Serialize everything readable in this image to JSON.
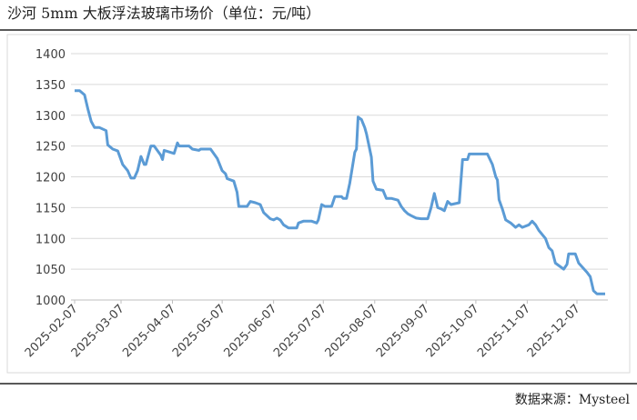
{
  "chart_data": {
    "type": "line",
    "title": "沙河 5mm 大板浮法玻璃市场价（单位：元/吨）",
    "source": "数据来源：Mysteel",
    "x": [
      "2025-02-07",
      "2025-02-10",
      "2025-02-13",
      "2025-02-15",
      "2025-02-17",
      "2025-02-19",
      "2025-02-22",
      "2025-02-26",
      "2025-02-27",
      "2025-03-02",
      "2025-03-05",
      "2025-03-08",
      "2025-03-11",
      "2025-03-13",
      "2025-03-15",
      "2025-03-17",
      "2025-03-19",
      "2025-03-21",
      "2025-03-22",
      "2025-03-25",
      "2025-03-27",
      "2025-03-31",
      "2025-04-01",
      "2025-04-02",
      "2025-04-08",
      "2025-04-10",
      "2025-04-11",
      "2025-04-17",
      "2025-04-19",
      "2025-04-23",
      "2025-04-24",
      "2025-04-30",
      "2025-05-04",
      "2025-05-07",
      "2025-05-09",
      "2025-05-10",
      "2025-05-14",
      "2025-05-16",
      "2025-05-17",
      "2025-05-22",
      "2025-05-24",
      "2025-05-27",
      "2025-05-30",
      "2025-06-01",
      "2025-06-05",
      "2025-06-07",
      "2025-06-09",
      "2025-06-11",
      "2025-06-13",
      "2025-06-16",
      "2025-06-21",
      "2025-06-22",
      "2025-06-25",
      "2025-06-30",
      "2025-07-03",
      "2025-07-04",
      "2025-07-06",
      "2025-07-08",
      "2025-07-12",
      "2025-07-14",
      "2025-07-18",
      "2025-07-19",
      "2025-07-21",
      "2025-07-23",
      "2025-07-26",
      "2025-07-27",
      "2025-07-28",
      "2025-07-30",
      "2025-08-01",
      "2025-08-02",
      "2025-08-05",
      "2025-08-06",
      "2025-08-08",
      "2025-08-12",
      "2025-08-14",
      "2025-08-17",
      "2025-08-21",
      "2025-08-23",
      "2025-08-25",
      "2025-08-27",
      "2025-08-29",
      "2025-09-01",
      "2025-09-04",
      "2025-09-08",
      "2025-09-10",
      "2025-09-12",
      "2025-09-14",
      "2025-09-16",
      "2025-09-18",
      "2025-09-20",
      "2025-09-22",
      "2025-09-27",
      "2025-09-29",
      "2025-10-02",
      "2025-10-03",
      "2025-10-14",
      "2025-10-17",
      "2025-10-19",
      "2025-10-20",
      "2025-10-21",
      "2025-10-23",
      "2025-10-25",
      "2025-10-28",
      "2025-10-31",
      "2025-11-02",
      "2025-11-04",
      "2025-11-08",
      "2025-11-10",
      "2025-11-12",
      "2025-11-14",
      "2025-11-18",
      "2025-11-20",
      "2025-11-22",
      "2025-11-24",
      "2025-11-29",
      "2025-12-01",
      "2025-12-02",
      "2025-12-06",
      "2025-12-08",
      "2025-12-13",
      "2025-12-15",
      "2025-12-17",
      "2025-12-19",
      "2025-12-24"
    ],
    "series": [
      {
        "color": "#5b9bd5",
        "values": [
          1340,
          1340,
          1333,
          1310,
          1290,
          1280,
          1280,
          1275,
          1252,
          1245,
          1242,
          1220,
          1210,
          1198,
          1198,
          1210,
          1233,
          1220,
          1220,
          1250,
          1250,
          1235,
          1228,
          1243,
          1238,
          1255,
          1250,
          1250,
          1245,
          1243,
          1245,
          1245,
          1230,
          1210,
          1205,
          1197,
          1193,
          1175,
          1152,
          1152,
          1160,
          1158,
          1155,
          1142,
          1132,
          1130,
          1133,
          1130,
          1122,
          1117,
          1117,
          1125,
          1128,
          1128,
          1125,
          1130,
          1155,
          1152,
          1152,
          1168,
          1168,
          1165,
          1165,
          1190,
          1240,
          1245,
          1297,
          1293,
          1280,
          1270,
          1232,
          1193,
          1180,
          1178,
          1165,
          1165,
          1162,
          1152,
          1145,
          1140,
          1137,
          1133,
          1132,
          1132,
          1150,
          1173,
          1150,
          1148,
          1145,
          1160,
          1155,
          1158,
          1228,
          1228,
          1237,
          1237,
          1220,
          1200,
          1195,
          1163,
          1148,
          1130,
          1125,
          1118,
          1122,
          1118,
          1122,
          1128,
          1122,
          1113,
          1100,
          1085,
          1080,
          1060,
          1050,
          1058,
          1075,
          1075,
          1060,
          1045,
          1038,
          1015,
          1010,
          1010
        ]
      }
    ],
    "xticks": [
      "2025-02-07",
      "2025-03-07",
      "2025-04-07",
      "2025-05-07",
      "2025-06-07",
      "2025-07-07",
      "2025-08-07",
      "2025-09-07",
      "2025-10-07",
      "2025-11-07",
      "2025-12-07"
    ],
    "ylim": [
      1000,
      1400
    ],
    "yticks": [
      1000,
      1050,
      1100,
      1150,
      1200,
      1250,
      1300,
      1350,
      1400
    ],
    "grid": true
  }
}
